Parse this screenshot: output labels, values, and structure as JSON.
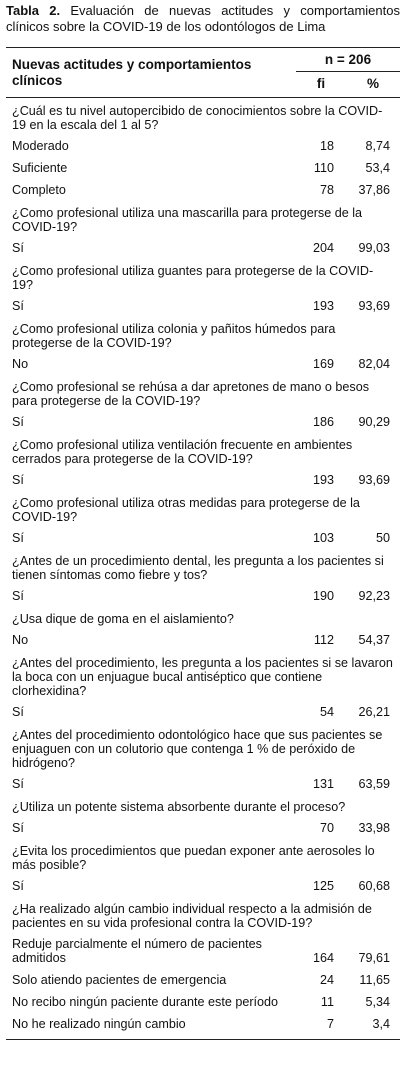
{
  "caption": {
    "label": "Tabla 2.",
    "text": "Evaluación de nuevas actitudes y comportamientos clínicos sobre la COVID-19 de los odontólogos de Lima"
  },
  "table": {
    "header": {
      "column": "Nuevas actitudes y comportamientos clínicos",
      "n": "n = 206",
      "fi": "fi",
      "pct": "%"
    },
    "groups": [
      {
        "question": "¿Cuál es tu nivel autopercibido de conocimientos sobre la COVID-19 en la escala del 1 al 5?",
        "answers": [
          {
            "label": "Moderado",
            "fi": "18",
            "pct": "8,74"
          },
          {
            "label": "Suficiente",
            "fi": "110",
            "pct": "53,4"
          },
          {
            "label": "Completo",
            "fi": "78",
            "pct": "37,86"
          }
        ]
      },
      {
        "question": "¿Como profesional utiliza una mascarilla para protegerse de la COVID-19?",
        "answers": [
          {
            "label": "Sí",
            "fi": "204",
            "pct": "99,03"
          }
        ]
      },
      {
        "question": "¿Como profesional utiliza guantes para protegerse de la COVID-19?",
        "answers": [
          {
            "label": "Sí",
            "fi": "193",
            "pct": "93,69"
          }
        ]
      },
      {
        "question": "¿Como profesional utiliza colonia y pañitos húmedos para protegerse de la COVID-19?",
        "answers": [
          {
            "label": "No",
            "fi": "169",
            "pct": "82,04"
          }
        ]
      },
      {
        "question": "¿Como profesional se rehúsa a dar apretones de mano o besos para protegerse de la COVID-19?",
        "answers": [
          {
            "label": "Sí",
            "fi": "186",
            "pct": "90,29"
          }
        ]
      },
      {
        "question": "¿Como profesional utiliza ventilación frecuente en ambientes cerrados para protegerse de la COVID-19?",
        "answers": [
          {
            "label": "Sí",
            "fi": "193",
            "pct": "93,69"
          }
        ]
      },
      {
        "question": "¿Como profesional utiliza otras medidas para protegerse de la COVID-19?",
        "answers": [
          {
            "label": "Sí",
            "fi": "103",
            "pct": "50"
          }
        ]
      },
      {
        "question": "¿Antes de un procedimiento dental, les pregunta a los pacientes si tienen síntomas como fiebre y tos?",
        "answers": [
          {
            "label": "Sí",
            "fi": "190",
            "pct": "92,23"
          }
        ]
      },
      {
        "question": "¿Usa dique de goma en el aislamiento?",
        "answers": [
          {
            "label": "No",
            "fi": "112",
            "pct": "54,37"
          }
        ]
      },
      {
        "question": "¿Antes del procedimiento, les pregunta a los pacientes si se lavaron la boca con un enjuague bucal antiséptico que contiene clorhexidina?",
        "answers": [
          {
            "label": "Sí",
            "fi": "54",
            "pct": "26,21"
          }
        ]
      },
      {
        "question": "¿Antes del procedimiento odontológico hace que sus pacientes se enjuaguen con un colutorio que contenga 1 % de peróxido de hidrógeno?",
        "answers": [
          {
            "label": "Sí",
            "fi": "131",
            "pct": "63,59"
          }
        ]
      },
      {
        "question": "¿Utiliza un potente sistema absorbente durante el proceso?",
        "answers": [
          {
            "label": "Sí",
            "fi": "70",
            "pct": "33,98"
          }
        ]
      },
      {
        "question": "¿Evita los procedimientos que puedan exponer ante aerosoles lo más posible?",
        "answers": [
          {
            "label": "Sí",
            "fi": "125",
            "pct": "60,68"
          }
        ]
      },
      {
        "question": "¿Ha realizado algún cambio individual respecto a la admisión de pacientes en su vida profesional contra la COVID-19?",
        "answers": [
          {
            "label": "Reduje parcialmente el número de pacientes admitidos",
            "fi": "164",
            "pct": "79,61"
          },
          {
            "label": "Solo atiendo pacientes de emergencia",
            "fi": "24",
            "pct": "11,65"
          },
          {
            "label": "No recibo ningún paciente durante este período",
            "fi": "11",
            "pct": "5,34"
          },
          {
            "label": "No he realizado ningún cambio",
            "fi": "7",
            "pct": "3,4"
          }
        ]
      }
    ]
  }
}
